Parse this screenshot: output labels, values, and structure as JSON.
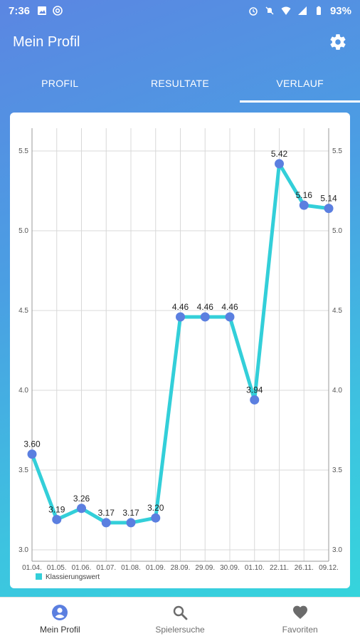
{
  "status_bar": {
    "time": "7:36",
    "battery": "93%",
    "icons": [
      "image-icon",
      "at-icon",
      "alarm-icon",
      "mute-icon",
      "wifi-icon",
      "signal-icon",
      "battery-icon"
    ]
  },
  "app_bar": {
    "title": "Mein Profil",
    "settings_icon": "gear-icon"
  },
  "tabs": [
    {
      "label": "PROFIL",
      "active": false
    },
    {
      "label": "RESULTATE",
      "active": false
    },
    {
      "label": "VERLAUF",
      "active": true
    }
  ],
  "chart_data": {
    "type": "line",
    "categories": [
      "01.04.",
      "01.05.",
      "01.06.",
      "01.07.",
      "01.08.",
      "01.09.",
      "28.09.",
      "29.09.",
      "30.09.",
      "01.10.",
      "22.11.",
      "26.11.",
      "09.12."
    ],
    "series": [
      {
        "name": "Klassierungswert",
        "values": [
          3.6,
          3.19,
          3.26,
          3.17,
          3.17,
          3.2,
          4.46,
          4.46,
          4.46,
          3.94,
          5.42,
          5.16,
          5.14
        ],
        "labels": [
          "3.60",
          "3.19",
          "3.26",
          "3.17",
          "3.17",
          "3.20",
          "4.46",
          "4.46",
          "4.46",
          "3.94",
          "5.42",
          "5.16",
          "5.14"
        ],
        "color": "#33cfd9",
        "point_color": "#5b7fe0"
      }
    ],
    "yticks": [
      "3.0",
      "3.5",
      "4.0",
      "4.5",
      "5.0",
      "5.5"
    ],
    "ylim": [
      3.0,
      5.5
    ],
    "grid": true,
    "legend_position": "bottom-left"
  },
  "bottom_nav": [
    {
      "label": "Mein Profil",
      "icon": "person-icon",
      "active": true
    },
    {
      "label": "Spielersuche",
      "icon": "search-icon",
      "active": false
    },
    {
      "label": "Favoriten",
      "icon": "heart-icon",
      "active": false
    }
  ]
}
